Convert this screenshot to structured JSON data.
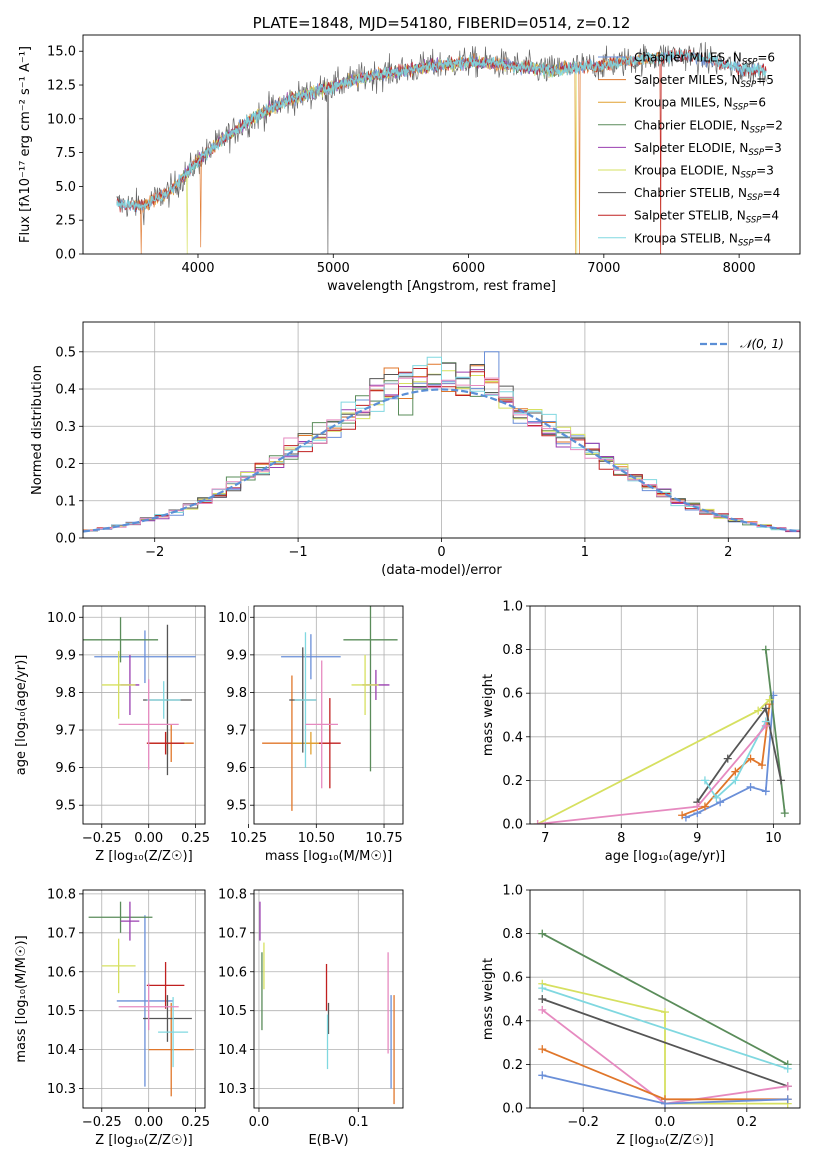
{
  "figure_title": "PLATE=1848, MJD=54180, FIBERID=0514, z=0.12",
  "colors": {
    "chabrier_miles": "#6a8fd8",
    "salpeter_miles": "#e0762a",
    "kroupa_miles": "#e0a030",
    "chabrier_elodie": "#5a8c5a",
    "salpeter_elodie": "#9a3fb0",
    "kroupa_elodie": "#d6e060",
    "chabrier_stelib": "#555555",
    "salpeter_stelib": "#c02020",
    "kroupa_stelib": "#80d8e0",
    "pink": "#e68ac0",
    "gaussian": "#5b8fd6"
  },
  "chart_data": [
    {
      "type": "line",
      "title": "PLATE=1848, MJD=54180, FIBERID=0514, z=0.12",
      "xlabel": "wavelength [Angstrom, rest frame]",
      "ylabel": "Flux [fλ10⁻¹⁷ erg cm⁻² s⁻¹ A⁻¹]",
      "xlim": [
        3150,
        8450
      ],
      "ylim": [
        0,
        16.2
      ],
      "xticks": [
        "4000",
        "5000",
        "6000",
        "7000",
        "8000"
      ],
      "yticks": [
        "0.0",
        "2.5",
        "5.0",
        "7.5",
        "10.0",
        "12.5",
        "15.0"
      ],
      "legend": "top-right",
      "spectrum_points": [
        [
          3400,
          3.7
        ],
        [
          3600,
          3.6
        ],
        [
          3800,
          4.7
        ],
        [
          4000,
          6.9
        ],
        [
          4200,
          8.6
        ],
        [
          4400,
          10.0
        ],
        [
          4600,
          11.1
        ],
        [
          4800,
          11.8
        ],
        [
          5000,
          12.4
        ],
        [
          5200,
          13.0
        ],
        [
          5400,
          13.4
        ],
        [
          5600,
          13.7
        ],
        [
          5800,
          14.0
        ],
        [
          6000,
          14.2
        ],
        [
          6200,
          14.1
        ],
        [
          6400,
          13.8
        ],
        [
          6600,
          13.6
        ],
        [
          6800,
          13.8
        ],
        [
          7000,
          14.0
        ],
        [
          7200,
          14.3
        ],
        [
          7400,
          14.6
        ],
        [
          7600,
          14.7
        ],
        [
          7800,
          14.3
        ],
        [
          8000,
          13.7
        ],
        [
          8200,
          13.5
        ]
      ],
      "series": [
        {
          "name": "Chabrier MILES, N",
          "sub": "SSP",
          "suffix": "=6"
        },
        {
          "name": "Salpeter MILES, N",
          "sub": "SSP",
          "suffix": "=5"
        },
        {
          "name": "Kroupa MILES, N",
          "sub": "SSP",
          "suffix": "=6"
        },
        {
          "name": "Chabrier ELODIE, N",
          "sub": "SSP",
          "suffix": "=2"
        },
        {
          "name": "Salpeter ELODIE, N",
          "sub": "SSP",
          "suffix": "=3"
        },
        {
          "name": "Kroupa ELODIE, N",
          "sub": "SSP",
          "suffix": "=3"
        },
        {
          "name": "Chabrier STELIB, N",
          "sub": "SSP",
          "suffix": "=4"
        },
        {
          "name": "Salpeter STELIB, N",
          "sub": "SSP",
          "suffix": "=4"
        },
        {
          "name": "Kroupa STELIB, N",
          "sub": "SSP",
          "suffix": "=4"
        }
      ]
    },
    {
      "type": "bar",
      "xlabel": "(data-model)/error",
      "ylabel": "Normed distribution",
      "xlim": [
        -2.5,
        2.5
      ],
      "ylim": [
        0,
        0.58
      ],
      "xticks": [
        "−2",
        "−1",
        "0",
        "1",
        "2"
      ],
      "yticks": [
        "0.0",
        "0.1",
        "0.2",
        "0.3",
        "0.4",
        "0.5"
      ],
      "legend": "top-right",
      "legend_label": "𝒩(0, 1)",
      "bin_width": 0.1,
      "bin_start": -2.5
    },
    {
      "type": "scatter",
      "xlabel": "Z [log₁₀(Z/Z☉)]",
      "ylabel": "age  [log₁₀(age/yr)]",
      "xlim": [
        -0.35,
        0.3
      ],
      "ylim": [
        9.45,
        10.03
      ],
      "xticks": [
        "−0.25",
        "0.00",
        "0.25"
      ],
      "yticks": [
        "9.5",
        "9.6",
        "9.7",
        "9.8",
        "9.9",
        "10.0"
      ],
      "points": [
        {
          "x": -0.02,
          "y": 9.895,
          "xerr": 0.27,
          "yerr": 0.07,
          "c": "chabrier_miles"
        },
        {
          "x": 0.12,
          "y": 9.665,
          "xerr": 0.12,
          "yerr": 0.05,
          "c": "salpeter_miles"
        },
        {
          "x": 0.1,
          "y": 9.665,
          "xerr": 0.1,
          "yerr": 0.03,
          "c": "kroupa_miles"
        },
        {
          "x": -0.15,
          "y": 9.94,
          "xerr": 0.2,
          "yerr": 0.06,
          "c": "chabrier_elodie"
        },
        {
          "x": -0.1,
          "y": 9.82,
          "xerr": 0.05,
          "yerr": 0.08,
          "c": "salpeter_elodie"
        },
        {
          "x": -0.16,
          "y": 9.82,
          "xerr": 0.09,
          "yerr": 0.09,
          "c": "kroupa_elodie"
        },
        {
          "x": 0.1,
          "y": 9.78,
          "xerr": 0.13,
          "yerr": 0.2,
          "c": "chabrier_stelib"
        },
        {
          "x": 0.09,
          "y": 9.665,
          "xerr": 0.1,
          "yerr": 0.03,
          "c": "salpeter_stelib"
        },
        {
          "x": 0.08,
          "y": 9.78,
          "xerr": 0.09,
          "yerr": 0.05,
          "c": "kroupa_stelib"
        },
        {
          "x": -0.0,
          "y": 9.715,
          "xerr": 0.16,
          "yerr": 0.12,
          "c": "pink"
        }
      ]
    },
    {
      "type": "scatter",
      "xlabel": "mass [log₁₀(M/M☉)]",
      "ylabel": "",
      "xlim": [
        10.27,
        10.82
      ],
      "ylim": [
        9.45,
        10.03
      ],
      "xticks": [
        "10.25",
        "10.50",
        "10.75"
      ],
      "yticks": [
        "9.5",
        "9.6",
        "9.7",
        "9.8",
        "9.9",
        "10.0"
      ],
      "points": [
        {
          "x": 10.48,
          "y": 9.895,
          "xerr": 0.11,
          "yerr": 0.06,
          "c": "chabrier_miles"
        },
        {
          "x": 10.41,
          "y": 9.665,
          "xerr": 0.11,
          "yerr": 0.18,
          "c": "salpeter_miles"
        },
        {
          "x": 10.48,
          "y": 9.665,
          "xerr": 0.07,
          "yerr": 0.03,
          "c": "kroupa_miles"
        },
        {
          "x": 10.7,
          "y": 9.94,
          "xerr": 0.1,
          "yerr": 0.35,
          "c": "chabrier_elodie"
        },
        {
          "x": 10.72,
          "y": 9.82,
          "xerr": 0.05,
          "yerr": 0.04,
          "c": "salpeter_elodie"
        },
        {
          "x": 10.68,
          "y": 9.82,
          "xerr": 0.05,
          "yerr": 0.08,
          "c": "kroupa_elodie"
        },
        {
          "x": 10.45,
          "y": 9.78,
          "xerr": 0.05,
          "yerr": 0.14,
          "c": "chabrier_stelib"
        },
        {
          "x": 10.55,
          "y": 9.665,
          "xerr": 0.04,
          "yerr": 0.12,
          "c": "salpeter_stelib"
        },
        {
          "x": 10.46,
          "y": 9.78,
          "xerr": 0.04,
          "yerr": 0.18,
          "c": "kroupa_stelib"
        },
        {
          "x": 10.52,
          "y": 9.715,
          "xerr": 0.06,
          "yerr": 0.17,
          "c": "pink"
        }
      ]
    },
    {
      "type": "line",
      "xlabel": "age  [log₁₀(age/yr)]",
      "ylabel": "mass weight",
      "xlim": [
        6.8,
        10.35
      ],
      "ylim": [
        0,
        1.0
      ],
      "xticks": [
        "7",
        "8",
        "9",
        "10"
      ],
      "yticks": [
        "0.0",
        "0.2",
        "0.4",
        "0.6",
        "0.8",
        "1.0"
      ],
      "series": [
        {
          "c": "chabrier_miles",
          "pts": [
            [
              8.85,
              0.03
            ],
            [
              9.0,
              0.05
            ],
            [
              9.3,
              0.1
            ],
            [
              9.7,
              0.17
            ],
            [
              9.9,
              0.15
            ],
            [
              10.0,
              0.59
            ]
          ]
        },
        {
          "c": "salpeter_miles",
          "pts": [
            [
              8.8,
              0.04
            ],
            [
              9.1,
              0.08
            ],
            [
              9.5,
              0.24
            ],
            [
              9.7,
              0.3
            ],
            [
              9.85,
              0.27
            ],
            [
              9.95,
              0.55
            ]
          ]
        },
        {
          "c": "chabrier_elodie",
          "pts": [
            [
              9.9,
              0.8
            ],
            [
              10.15,
              0.05
            ]
          ]
        },
        {
          "c": "kroupa_elodie",
          "pts": [
            [
              6.9,
              0.0
            ],
            [
              9.8,
              0.52
            ],
            [
              9.95,
              0.57
            ]
          ]
        },
        {
          "c": "chabrier_stelib",
          "pts": [
            [
              9.0,
              0.1
            ],
            [
              9.4,
              0.3
            ],
            [
              9.9,
              0.53
            ],
            [
              10.1,
              0.2
            ]
          ]
        },
        {
          "c": "kroupa_stelib",
          "pts": [
            [
              9.1,
              0.2
            ],
            [
              9.25,
              0.12
            ],
            [
              9.5,
              0.2
            ],
            [
              9.9,
              0.47
            ]
          ]
        },
        {
          "c": "pink",
          "pts": [
            [
              6.9,
              0.0
            ],
            [
              9.0,
              0.08
            ],
            [
              9.9,
              0.45
            ]
          ]
        }
      ]
    },
    {
      "type": "scatter",
      "xlabel": "Z [log₁₀(Z/Z☉)]",
      "ylabel": "mass [log₁₀(M/M☉)]",
      "xlim": [
        -0.35,
        0.3
      ],
      "ylim": [
        10.25,
        10.81
      ],
      "xticks": [
        "−0.25",
        "0.00",
        "0.25"
      ],
      "yticks": [
        "10.3",
        "10.4",
        "10.5",
        "10.6",
        "10.7",
        "10.8"
      ],
      "points": [
        {
          "x": -0.02,
          "y": 10.525,
          "xerr": 0.15,
          "yerr": 0.22,
          "c": "chabrier_miles"
        },
        {
          "x": 0.12,
          "y": 10.4,
          "xerr": 0.12,
          "yerr": 0.12,
          "c": "salpeter_miles"
        },
        {
          "x": -0.15,
          "y": 10.74,
          "xerr": 0.17,
          "yerr": 0.04,
          "c": "chabrier_elodie"
        },
        {
          "x": -0.1,
          "y": 10.73,
          "xerr": 0.05,
          "yerr": 0.05,
          "c": "salpeter_elodie"
        },
        {
          "x": -0.16,
          "y": 10.615,
          "xerr": 0.09,
          "yerr": 0.07,
          "c": "kroupa_elodie"
        },
        {
          "x": 0.1,
          "y": 10.48,
          "xerr": 0.13,
          "yerr": 0.06,
          "c": "chabrier_stelib"
        },
        {
          "x": 0.09,
          "y": 10.565,
          "xerr": 0.1,
          "yerr": 0.06,
          "c": "salpeter_stelib"
        },
        {
          "x": 0.13,
          "y": 10.445,
          "xerr": 0.08,
          "yerr": 0.09,
          "c": "kroupa_stelib"
        },
        {
          "x": -0.0,
          "y": 10.51,
          "xerr": 0.16,
          "yerr": 0.06,
          "c": "pink"
        }
      ]
    },
    {
      "type": "scatter",
      "xlabel": "E(B-V)",
      "ylabel": "",
      "xlim": [
        -0.005,
        0.145
      ],
      "ylim": [
        10.25,
        10.81
      ],
      "xticks": [
        "0.0",
        "0.1"
      ],
      "yticks": [
        "10.3",
        "10.4",
        "10.5",
        "10.6",
        "10.7",
        "10.8"
      ],
      "points": [
        {
          "x": 0.003,
          "y": 10.55,
          "xerr": 0,
          "yerr": 0.1,
          "c": "chabrier_elodie"
        },
        {
          "x": 0.001,
          "y": 10.73,
          "xerr": 0,
          "yerr": 0.05,
          "c": "salpeter_elodie"
        },
        {
          "x": 0.005,
          "y": 10.615,
          "xerr": 0,
          "yerr": 0.06,
          "c": "kroupa_elodie"
        },
        {
          "x": 0.07,
          "y": 10.48,
          "xerr": 0,
          "yerr": 0.04,
          "c": "chabrier_stelib"
        },
        {
          "x": 0.068,
          "y": 10.56,
          "xerr": 0,
          "yerr": 0.06,
          "c": "salpeter_stelib"
        },
        {
          "x": 0.069,
          "y": 10.42,
          "xerr": 0,
          "yerr": 0.07,
          "c": "kroupa_stelib"
        },
        {
          "x": 0.133,
          "y": 10.42,
          "xerr": 0,
          "yerr": 0.12,
          "c": "chabrier_miles"
        },
        {
          "x": 0.136,
          "y": 10.4,
          "xerr": 0,
          "yerr": 0.14,
          "c": "salpeter_miles"
        },
        {
          "x": 0.13,
          "y": 10.52,
          "xerr": 0,
          "yerr": 0.13,
          "c": "pink"
        }
      ]
    },
    {
      "type": "line",
      "xlabel": "Z [log₁₀(Z/Z☉)]",
      "ylabel": "mass weight",
      "xlim": [
        -0.33,
        0.33
      ],
      "ylim": [
        0,
        1.0
      ],
      "xticks": [
        "−0.2",
        "0.0",
        "0.2"
      ],
      "yticks": [
        "0.0",
        "0.2",
        "0.4",
        "0.6",
        "0.8",
        "1.0"
      ],
      "series": [
        {
          "c": "chabrier_elodie",
          "pts": [
            [
              -0.3,
              0.8
            ],
            [
              0.3,
              0.2
            ]
          ]
        },
        {
          "c": "kroupa_elodie",
          "pts": [
            [
              -0.3,
              0.57
            ],
            [
              0.0,
              0.44
            ],
            [
              0.0,
              0.02
            ],
            [
              0.3,
              0.02
            ]
          ]
        },
        {
          "c": "kroupa_stelib",
          "pts": [
            [
              -0.3,
              0.55
            ],
            [
              0.3,
              0.18
            ]
          ]
        },
        {
          "c": "chabrier_stelib",
          "pts": [
            [
              -0.3,
              0.5
            ],
            [
              0.3,
              0.1
            ]
          ]
        },
        {
          "c": "pink",
          "pts": [
            [
              -0.3,
              0.45
            ],
            [
              0.0,
              0.02
            ],
            [
              0.3,
              0.1
            ]
          ]
        },
        {
          "c": "salpeter_miles",
          "pts": [
            [
              -0.3,
              0.27
            ],
            [
              0.0,
              0.04
            ],
            [
              0.3,
              0.04
            ]
          ]
        },
        {
          "c": "chabrier_miles",
          "pts": [
            [
              -0.3,
              0.15
            ],
            [
              0.0,
              0.02
            ],
            [
              0.3,
              0.04
            ]
          ]
        }
      ]
    }
  ]
}
